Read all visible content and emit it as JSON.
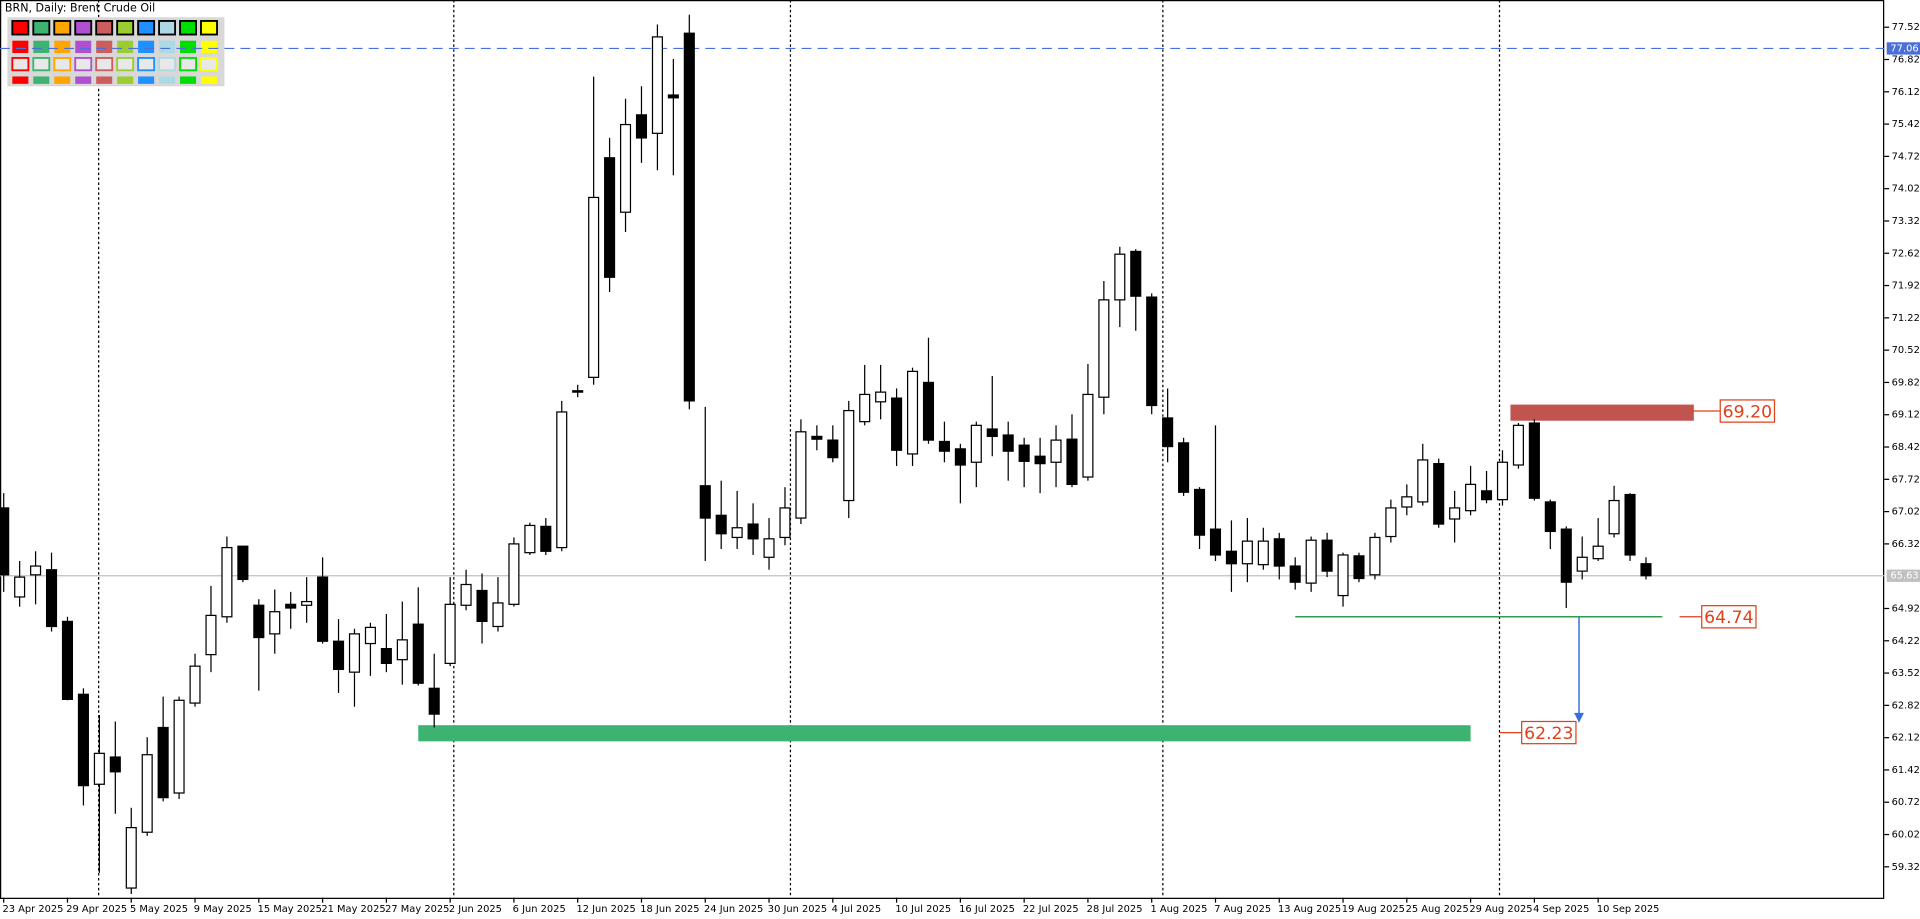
{
  "chart_data": {
    "type": "candlestick",
    "title": "BRN, Daily: Brent Crude Oil",
    "categories": [
      "23 Apr 2025",
      null,
      null,
      null,
      "29 Apr 2025",
      null,
      null,
      null,
      "5 May 2025",
      null,
      null,
      null,
      "9 May 2025",
      null,
      null,
      null,
      "15 May 2025",
      null,
      null,
      null,
      "21 May 2025",
      null,
      null,
      null,
      "27 May 2025",
      null,
      null,
      null,
      "2 Jun 2025",
      null,
      null,
      null,
      "6 Jun 2025",
      null,
      null,
      null,
      "12 Jun 2025",
      null,
      null,
      null,
      "18 Jun 2025",
      null,
      null,
      null,
      "24 Jun 2025",
      null,
      null,
      null,
      "30 Jun 2025",
      null,
      null,
      null,
      "4 Jul 2025",
      null,
      null,
      null,
      "10 Jul 2025",
      null,
      null,
      null,
      "16 Jul 2025",
      null,
      null,
      null,
      "22 Jul 2025",
      null,
      null,
      null,
      "28 Jul 2025",
      null,
      null,
      null,
      "1 Aug 2025",
      null,
      null,
      null,
      "7 Aug 2025",
      null,
      null,
      null,
      "13 Aug 2025",
      null,
      null,
      null,
      "19 Aug 2025",
      null,
      null,
      null,
      "25 Aug 2025",
      null,
      null,
      null,
      "29 Aug 2025",
      null,
      null,
      null,
      "4 Sep 2025",
      null,
      null,
      null,
      "10 Sep 2025",
      null,
      null,
      null
    ],
    "candles": [
      [
        67.1,
        67.42,
        65.28,
        65.65
      ],
      [
        65.17,
        65.95,
        64.96,
        65.6
      ],
      [
        65.65,
        66.16,
        65.01,
        65.84
      ],
      [
        65.76,
        66.13,
        64.42,
        64.53
      ],
      [
        64.64,
        64.74,
        62.93,
        62.95
      ],
      [
        63.06,
        63.19,
        60.65,
        61.08
      ],
      [
        61.11,
        62.61,
        59.19,
        61.78
      ],
      [
        61.7,
        62.47,
        60.47,
        61.38
      ],
      [
        58.86,
        60.6,
        58.73,
        60.17
      ],
      [
        60.07,
        62.13,
        59.99,
        61.75
      ],
      [
        62.34,
        63.01,
        60.74,
        60.82
      ],
      [
        60.92,
        63.01,
        60.79,
        62.93
      ],
      [
        62.87,
        63.94,
        62.79,
        63.67
      ],
      [
        63.92,
        65.41,
        63.54,
        64.77
      ],
      [
        64.74,
        66.48,
        64.61,
        66.24
      ],
      [
        66.27,
        66.27,
        65.49,
        65.55
      ],
      [
        64.99,
        65.12,
        63.14,
        64.29
      ],
      [
        64.37,
        65.33,
        63.94,
        64.85
      ],
      [
        65.01,
        65.28,
        64.48,
        64.93
      ],
      [
        64.99,
        65.6,
        64.61,
        65.07
      ],
      [
        65.6,
        66.03,
        64.16,
        64.21
      ],
      [
        64.21,
        64.69,
        63.09,
        63.6
      ],
      [
        63.54,
        64.48,
        62.79,
        64.37
      ],
      [
        64.16,
        64.61,
        63.46,
        64.51
      ],
      [
        64.05,
        64.8,
        63.54,
        63.73
      ],
      [
        63.81,
        65.07,
        63.27,
        64.24
      ],
      [
        64.58,
        65.38,
        63.25,
        63.3
      ],
      [
        63.19,
        63.94,
        62.34,
        62.63
      ],
      [
        63.73,
        65.6,
        63.67,
        65.01
      ],
      [
        64.99,
        65.76,
        64.88,
        65.44
      ],
      [
        65.31,
        65.68,
        64.16,
        64.64
      ],
      [
        64.53,
        65.6,
        64.42,
        65.04
      ],
      [
        65.01,
        66.46,
        64.96,
        66.32
      ],
      [
        66.13,
        66.78,
        66.08,
        66.72
      ],
      [
        66.7,
        66.88,
        66.08,
        66.16
      ],
      [
        66.24,
        69.42,
        66.16,
        69.18
      ],
      [
        69.64,
        69.77,
        69.5,
        69.61
      ],
      [
        69.93,
        76.45,
        69.77,
        73.83
      ],
      [
        74.69,
        75.12,
        71.78,
        72.1
      ],
      [
        73.51,
        75.97,
        73.08,
        75.41
      ],
      [
        75.62,
        76.24,
        74.58,
        75.12
      ],
      [
        75.22,
        77.58,
        74.42,
        77.31
      ],
      [
        76.05,
        76.83,
        74.31,
        75.99
      ],
      [
        77.39,
        77.79,
        69.24,
        69.42
      ],
      [
        67.58,
        69.29,
        65.95,
        66.88
      ],
      [
        66.94,
        67.69,
        66.21,
        66.54
      ],
      [
        66.46,
        67.47,
        66.21,
        66.67
      ],
      [
        66.75,
        67.2,
        66.08,
        66.43
      ],
      [
        66.03,
        66.88,
        65.76,
        66.43
      ],
      [
        66.46,
        67.55,
        66.29,
        67.1
      ],
      [
        66.88,
        69.02,
        66.75,
        68.75
      ],
      [
        68.65,
        68.89,
        68.35,
        68.59
      ],
      [
        68.57,
        68.89,
        68.09,
        68.19
      ],
      [
        67.26,
        69.42,
        66.88,
        69.21
      ],
      [
        68.97,
        70.2,
        68.89,
        69.56
      ],
      [
        69.4,
        70.2,
        69.02,
        69.61
      ],
      [
        69.48,
        69.69,
        68.01,
        68.35
      ],
      [
        68.27,
        70.14,
        68.01,
        70.06
      ],
      [
        69.82,
        70.79,
        68.49,
        68.57
      ],
      [
        68.54,
        68.97,
        68.09,
        68.33
      ],
      [
        68.38,
        68.49,
        67.2,
        68.03
      ],
      [
        68.09,
        68.97,
        67.55,
        68.89
      ],
      [
        68.81,
        69.96,
        68.22,
        68.65
      ],
      [
        68.68,
        68.97,
        67.69,
        68.33
      ],
      [
        68.46,
        68.62,
        67.55,
        68.11
      ],
      [
        68.22,
        68.62,
        67.42,
        68.06
      ],
      [
        68.09,
        68.89,
        67.55,
        68.57
      ],
      [
        68.59,
        69.13,
        67.55,
        67.61
      ],
      [
        67.77,
        70.22,
        67.69,
        69.56
      ],
      [
        69.5,
        72.02,
        69.13,
        71.61
      ],
      [
        71.61,
        72.76,
        71.02,
        72.6
      ],
      [
        72.66,
        72.71,
        70.94,
        71.69
      ],
      [
        71.67,
        71.75,
        69.13,
        69.32
      ],
      [
        69.05,
        69.69,
        68.09,
        68.43
      ],
      [
        68.51,
        68.62,
        67.36,
        67.44
      ],
      [
        67.5,
        67.55,
        66.21,
        66.51
      ],
      [
        66.64,
        68.89,
        65.95,
        66.08
      ],
      [
        66.16,
        66.83,
        65.28,
        65.89
      ],
      [
        65.89,
        66.88,
        65.49,
        66.38
      ],
      [
        65.87,
        66.67,
        65.76,
        66.38
      ],
      [
        66.43,
        66.56,
        65.55,
        65.84
      ],
      [
        65.84,
        66.03,
        65.33,
        65.49
      ],
      [
        65.47,
        66.48,
        65.28,
        66.4
      ],
      [
        66.4,
        66.56,
        65.6,
        65.73
      ],
      [
        65.2,
        66.13,
        64.96,
        66.08
      ],
      [
        66.06,
        66.13,
        65.49,
        65.57
      ],
      [
        65.65,
        66.56,
        65.55,
        66.46
      ],
      [
        66.48,
        67.28,
        66.35,
        67.1
      ],
      [
        67.12,
        67.61,
        66.94,
        67.34
      ],
      [
        67.23,
        68.49,
        67.15,
        68.14
      ],
      [
        68.06,
        68.17,
        66.67,
        66.75
      ],
      [
        66.86,
        67.47,
        66.35,
        67.1
      ],
      [
        67.04,
        68.01,
        66.94,
        67.61
      ],
      [
        67.47,
        67.9,
        67.2,
        67.28
      ],
      [
        67.28,
        68.35,
        67.15,
        68.09
      ],
      [
        68.03,
        68.94,
        67.95,
        68.89
      ],
      [
        68.94,
        69.02,
        67.26,
        67.31
      ],
      [
        67.23,
        67.28,
        66.21,
        66.59
      ],
      [
        66.64,
        66.7,
        64.93,
        65.49
      ],
      [
        65.73,
        66.48,
        65.55,
        66.03
      ],
      [
        66.0,
        66.88,
        65.95,
        66.27
      ],
      [
        66.54,
        67.58,
        66.46,
        67.26
      ],
      [
        67.39,
        67.42,
        65.95,
        66.08
      ],
      [
        65.89,
        66.03,
        65.55,
        65.63
      ]
    ],
    "ylim": [
      58.65,
      78.11
    ],
    "yticks": [
      59.32,
      60.02,
      60.72,
      61.42,
      62.12,
      62.82,
      63.52,
      64.22,
      64.92,
      66.32,
      67.02,
      67.72,
      68.42,
      69.12,
      69.82,
      70.52,
      71.22,
      71.92,
      72.62,
      73.32,
      74.02,
      74.72,
      75.42,
      76.12,
      76.82,
      77.52
    ],
    "price_lines": [
      {
        "value": 77.06,
        "color": "#4a6fd8",
        "style": "dashed"
      },
      {
        "value": 65.63,
        "color": "#c0c0c0",
        "style": "solid"
      }
    ],
    "levels": [
      {
        "value": 69.2,
        "label": "69.20",
        "color": "#c25450",
        "range": [
          68.99,
          69.34
        ]
      },
      {
        "value": 64.74,
        "color": "#2e9e4e"
      },
      {
        "value": 62.23,
        "color": "#3cb371",
        "range": [
          62.04,
          62.39
        ]
      }
    ],
    "label_color": "#e0401a"
  }
}
